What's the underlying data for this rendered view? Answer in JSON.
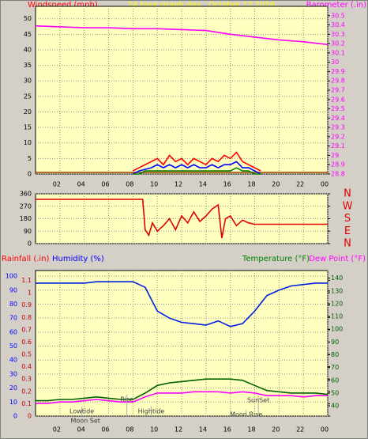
{
  "chart_data": [
    {
      "type": "line",
      "title": "24 hour graph day   October 12 2016",
      "y_label": "Windspeed (mph)",
      "y2_label": "Barometer (.in)",
      "xlim": [
        0,
        24
      ],
      "xticks": [
        {
          "value": 2,
          "label": "02"
        },
        {
          "value": 4,
          "label": "04"
        },
        {
          "value": 6,
          "label": "06"
        },
        {
          "value": 8,
          "label": "08"
        },
        10,
        12,
        14,
        16,
        18,
        20,
        22,
        {
          "value": 24,
          "label": "00"
        }
      ],
      "ylim": [
        0,
        54
      ],
      "yticks": [
        0,
        5,
        10,
        15,
        20,
        25,
        30,
        35,
        40,
        45,
        50
      ],
      "y2lim": [
        28.8,
        30.6
      ],
      "y2ticks": [
        28.8,
        28.9,
        29,
        29.1,
        29.2,
        29.3,
        29.4,
        29.5,
        29.6,
        29.7,
        29.8,
        29.9,
        30,
        30.1,
        30.2,
        30.3,
        30.4,
        30.5
      ],
      "grid": true,
      "series": [
        {
          "color": "#a04000",
          "x": [
            0,
            24
          ],
          "values": [
            0.5,
            0.5
          ]
        },
        {
          "color": "#ff0000",
          "x": [
            8,
            8.5,
            9,
            9.5,
            10,
            10.5,
            11,
            11.5,
            12,
            12.5,
            13,
            13.5,
            14,
            14.5,
            15,
            15.5,
            16,
            16.5,
            17,
            17.5,
            18,
            18.5
          ],
          "values": [
            1,
            2,
            3,
            4,
            5,
            3,
            6,
            4,
            5,
            3,
            5,
            4,
            3,
            5,
            4,
            6,
            5,
            7,
            4,
            3,
            2,
            1
          ]
        },
        {
          "color": "#0000ff",
          "x": [
            8,
            8.5,
            9,
            9.5,
            10,
            10.5,
            11,
            11.5,
            12,
            12.5,
            13,
            13.5,
            14,
            14.5,
            15,
            15.5,
            16,
            16.5,
            17,
            17.5,
            18,
            18.5
          ],
          "values": [
            0,
            1,
            1.5,
            2,
            3,
            2,
            3,
            2,
            3,
            2,
            3,
            2,
            2,
            3,
            2,
            3,
            3,
            4,
            2,
            2,
            1,
            0
          ]
        },
        {
          "color": "#008000",
          "x": [
            8,
            8.5,
            9,
            9.5,
            10,
            10.5,
            11,
            11.5,
            12,
            12.5,
            13,
            13.5,
            14,
            14.5,
            15,
            15.5,
            16,
            16.5,
            17,
            17.5,
            18,
            18.5
          ],
          "values": [
            0,
            0,
            1,
            1,
            1,
            1,
            1,
            1,
            1,
            1,
            1,
            1,
            1,
            1,
            1,
            1,
            1,
            2,
            1,
            1,
            0,
            0
          ]
        },
        {
          "color": "#ff00ff",
          "axis": "y2",
          "x": [
            0,
            2,
            4,
            6,
            8,
            10,
            12,
            14,
            16,
            18,
            20,
            22,
            24
          ],
          "values": [
            30.39,
            30.38,
            30.37,
            30.37,
            30.36,
            30.36,
            30.35,
            30.34,
            30.3,
            30.27,
            30.24,
            30.22,
            30.19
          ]
        }
      ]
    },
    {
      "type": "line",
      "xlim": [
        0,
        24
      ],
      "xticks": [
        2,
        4,
        6,
        8,
        10,
        12,
        14,
        16,
        18,
        20,
        22,
        24
      ],
      "ylim": [
        0,
        360
      ],
      "yticks": [
        0,
        90,
        180,
        270,
        360
      ],
      "y2lim": [
        0,
        360
      ],
      "y2ticks": [
        {
          "value": 360,
          "label": "N"
        },
        {
          "value": 270,
          "label": "W"
        },
        {
          "value": 180,
          "label": "S"
        },
        {
          "value": 90,
          "label": "E"
        },
        {
          "value": 0,
          "label": "N"
        }
      ],
      "grid": true,
      "series": [
        {
          "color": "#e00000",
          "x": [
            0,
            8.8,
            9,
            9.3,
            9.6,
            10,
            10.5,
            11,
            11.5,
            12,
            12.5,
            13,
            13.5,
            14,
            14.5,
            15,
            15.3,
            15.6,
            16,
            16.5,
            17,
            17.5,
            18,
            24
          ],
          "values": [
            320,
            320,
            100,
            60,
            150,
            90,
            130,
            180,
            100,
            200,
            150,
            230,
            160,
            200,
            250,
            280,
            40,
            180,
            200,
            130,
            170,
            150,
            140,
            140
          ]
        }
      ]
    },
    {
      "type": "line",
      "y3_label": "Rainfall (.in)",
      "y_label": "Humidity (%)",
      "y2_label": "Temperature (°F)",
      "y4_label": "Dew Point (°F)",
      "xlim": [
        0,
        24
      ],
      "xticks": [
        {
          "value": 2,
          "label": "02"
        },
        {
          "value": 4,
          "label": "04"
        },
        {
          "value": 6,
          "label": "06"
        },
        {
          "value": 8,
          "label": "08"
        },
        10,
        12,
        14,
        16,
        18,
        20,
        22,
        {
          "value": 24,
          "label": "00"
        }
      ],
      "ylim": [
        0,
        104
      ],
      "yticks": [
        0,
        10,
        20,
        30,
        40,
        50,
        60,
        70,
        80,
        90,
        100
      ],
      "y3lim": [
        0,
        1.18
      ],
      "y3ticks": [
        0,
        0.1,
        0.2,
        0.3,
        0.4,
        0.5,
        0.6,
        0.7,
        0.8,
        0.9,
        1,
        1.1
      ],
      "y2lim": [
        32,
        146
      ],
      "y2ticks": [
        40,
        50,
        60,
        70,
        80,
        90,
        100,
        110,
        120,
        130,
        140
      ],
      "grid": true,
      "series": [
        {
          "color": "#0020e0",
          "x": [
            0,
            1,
            2,
            3,
            4,
            5,
            6,
            7,
            8,
            9,
            10,
            11,
            12,
            13,
            14,
            15,
            16,
            17,
            18,
            19,
            20,
            21,
            22,
            23,
            24
          ],
          "values": [
            95,
            95,
            95,
            95,
            95,
            96,
            96,
            96,
            96,
            92,
            75,
            70,
            67,
            66,
            65,
            68,
            64,
            66,
            75,
            86,
            90,
            93,
            94,
            95,
            95
          ]
        },
        {
          "color": "#006000",
          "axis": "y2",
          "x": [
            0,
            1,
            2,
            3,
            4,
            5,
            6,
            7,
            8,
            9,
            10,
            11,
            12,
            13,
            14,
            15,
            16,
            17,
            18,
            19,
            20,
            21,
            22,
            23,
            24
          ],
          "values": [
            44,
            44,
            45,
            45,
            46,
            47,
            46,
            45,
            45,
            50,
            56,
            58,
            59,
            60,
            61,
            61,
            61,
            60,
            56,
            52,
            51,
            50,
            50,
            50,
            49
          ]
        },
        {
          "color": "#ff00ff",
          "axis": "y2",
          "x": [
            0,
            1,
            2,
            3,
            4,
            5,
            6,
            7,
            8,
            9,
            10,
            11,
            12,
            13,
            14,
            15,
            16,
            17,
            18,
            19,
            20,
            21,
            22,
            23,
            24
          ],
          "values": [
            42,
            42,
            43,
            43,
            44,
            45,
            44,
            43,
            43,
            47,
            50,
            50,
            50,
            51,
            51,
            51,
            50,
            51,
            50,
            48,
            48,
            48,
            47,
            48,
            48
          ]
        }
      ],
      "annotations": [
        {
          "text": "Lowtide",
          "x": 3.8
        },
        {
          "text": "Moon Set",
          "x": 4.1
        },
        {
          "text": "Rise",
          "x": 7.5
        },
        {
          "text": "Hightide",
          "x": 9.5
        },
        {
          "text": "SunSet",
          "x": 18.3
        },
        {
          "text": "Moon Rise",
          "x": 17.3
        }
      ]
    }
  ]
}
